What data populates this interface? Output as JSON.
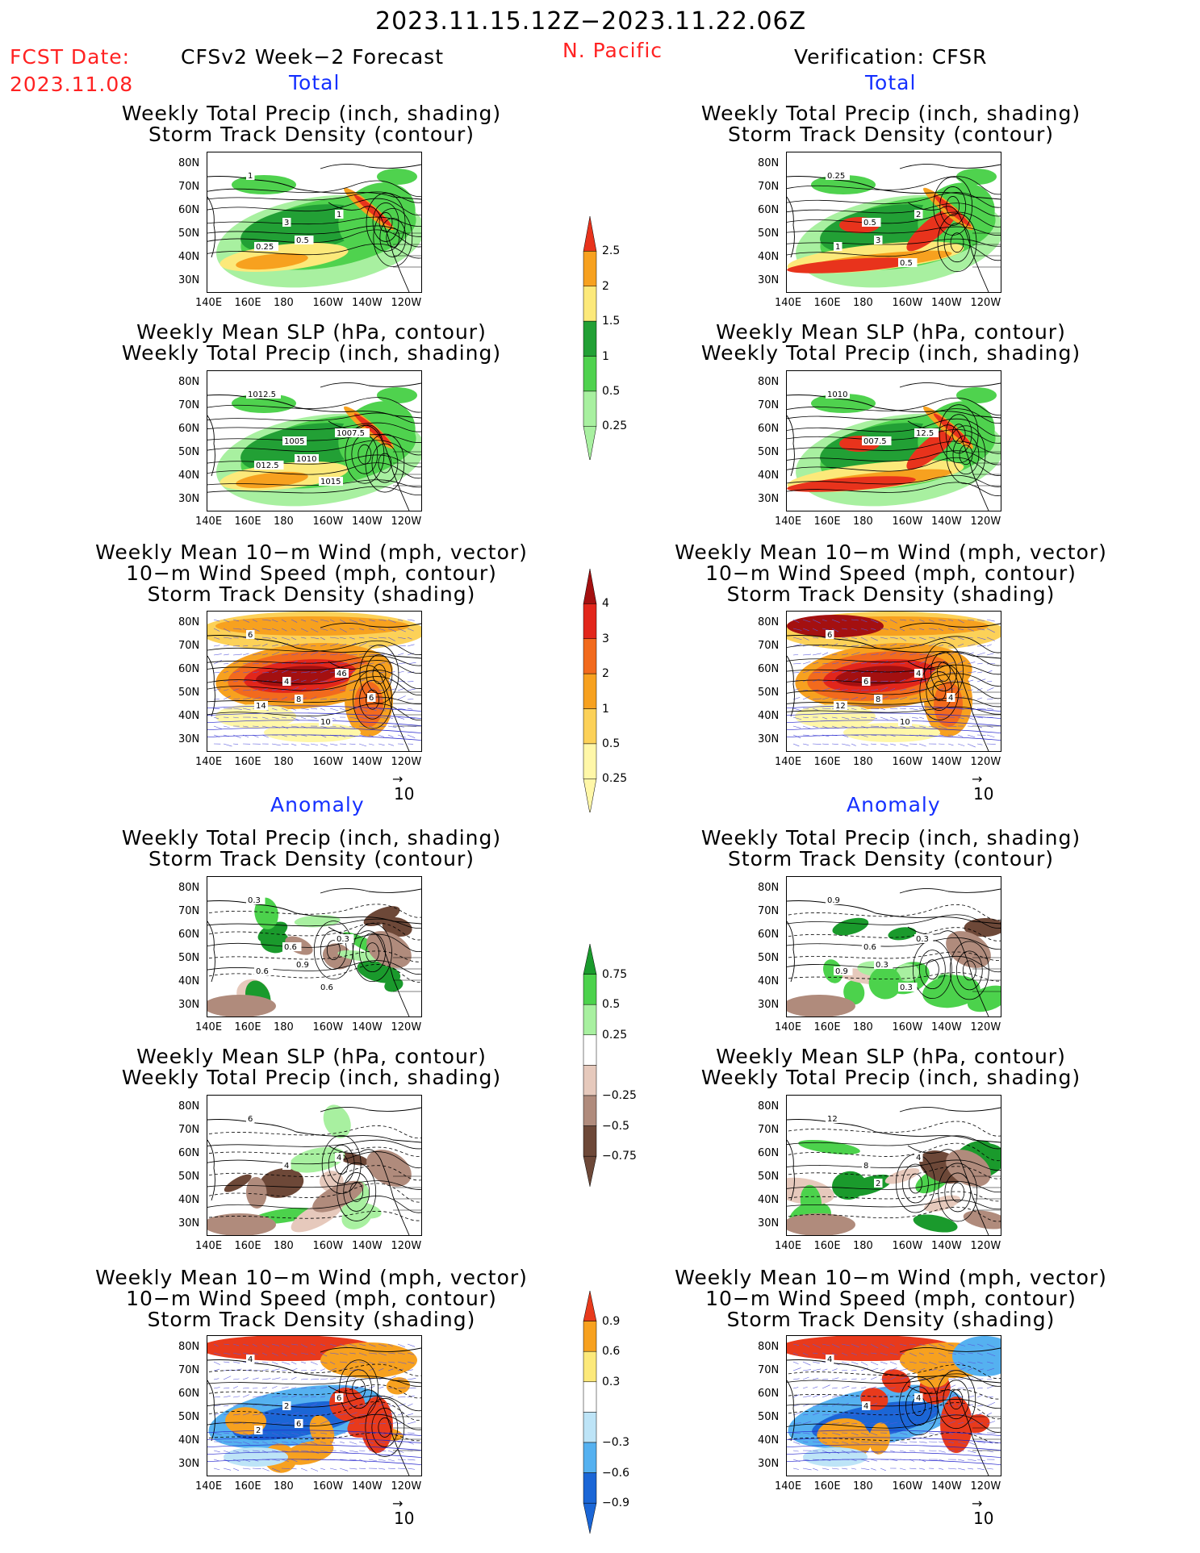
{
  "header": {
    "period": "2023.11.15.12Z−2023.11.22.06Z",
    "fcst_label": "FCST Date:",
    "fcst_date": "2023.11.08",
    "left_title": "CFSv2 Week−2 Forecast",
    "region": "N. Pacific",
    "right_title": "Verification: CFSR"
  },
  "sections": {
    "total": "Total",
    "anomaly": "Anomaly"
  },
  "panel_titles": {
    "precip_storm": [
      "Weekly Total Precip (inch, shading)",
      "Storm Track Density (contour)"
    ],
    "slp_precip": [
      "Weekly Mean SLP (hPa, contour)",
      "Weekly Total Precip (inch, shading)"
    ],
    "wind_storm": [
      "Weekly Mean 10−m Wind (mph, vector)",
      "10−m Wind Speed (mph, contour)",
      "Storm Track Density (shading)"
    ]
  },
  "axes": {
    "lat_ticks": [
      "80N",
      "70N",
      "60N",
      "50N",
      "40N",
      "30N"
    ],
    "lon_ticks": [
      "140E",
      "160E",
      "180",
      "160W",
      "140W",
      "120W"
    ]
  },
  "vector_ref": "10",
  "colorbars": {
    "precip_total": {
      "labels": [
        "2.5",
        "2",
        "1.5",
        "1",
        "0.5",
        "0.25"
      ],
      "colors": [
        "#e8331c",
        "#f7a11f",
        "#fce97a",
        "#22a035",
        "#4fd24e",
        "#a8f0a0"
      ]
    },
    "storm_total": {
      "labels": [
        "4",
        "3",
        "2",
        "1",
        "0.5",
        "0.25"
      ],
      "colors": [
        "#a41010",
        "#e2261b",
        "#f26a1d",
        "#f7a11f",
        "#fcd158",
        "#fff7a8"
      ]
    },
    "precip_anom": {
      "labels": [
        "0.75",
        "0.5",
        "0.25",
        "−0.25",
        "−0.5",
        "−0.75"
      ],
      "colors": [
        "#1a9a2c",
        "#4cd24c",
        "#a8f0a0",
        "#ffffff",
        "#e6c9bc",
        "#b08b7c",
        "#6d4838"
      ]
    },
    "storm_anom": {
      "labels": [
        "0.9",
        "0.6",
        "0.3",
        "−0.3",
        "−0.6",
        "−0.9"
      ],
      "colors": [
        "#e83a1c",
        "#f7a11f",
        "#fce97a",
        "#ffffff",
        "#bde4f7",
        "#55b1f0",
        "#1b66d6"
      ]
    }
  },
  "map_labels": {
    "fc_precip_total": [
      "1",
      "3",
      "1",
      "0.5",
      "0.25"
    ],
    "vf_precip_total": [
      "0.25",
      "0.5",
      "2",
      "3",
      "1",
      "0.5"
    ],
    "fc_slp_total": [
      "1012.5",
      "1005",
      "1007.5",
      "1010",
      "012.5",
      "1015"
    ],
    "vf_slp_total": [
      "1010",
      "007.5",
      "12.5"
    ],
    "fc_wind_total": [
      "6",
      "4",
      "46",
      "8",
      "14",
      "10",
      "6"
    ],
    "vf_wind_total": [
      "6",
      "6",
      "4",
      "8",
      "12",
      "10",
      "4"
    ],
    "fc_precip_anom": [
      "0.3",
      "0.6",
      "0.3",
      "0.9",
      "0.6",
      "0.6"
    ],
    "vf_precip_anom": [
      "0.9",
      "0.6",
      "0.3",
      "0.3",
      "0.9",
      "0.3"
    ],
    "fc_slp_anom": [
      "6",
      "4",
      "4"
    ],
    "vf_slp_anom": [
      "12",
      "8",
      "4",
      "2"
    ],
    "fc_wind_anom": [
      "4",
      "2",
      "6",
      "6",
      "2"
    ],
    "vf_wind_anom": [
      "4",
      "4",
      "4"
    ]
  }
}
